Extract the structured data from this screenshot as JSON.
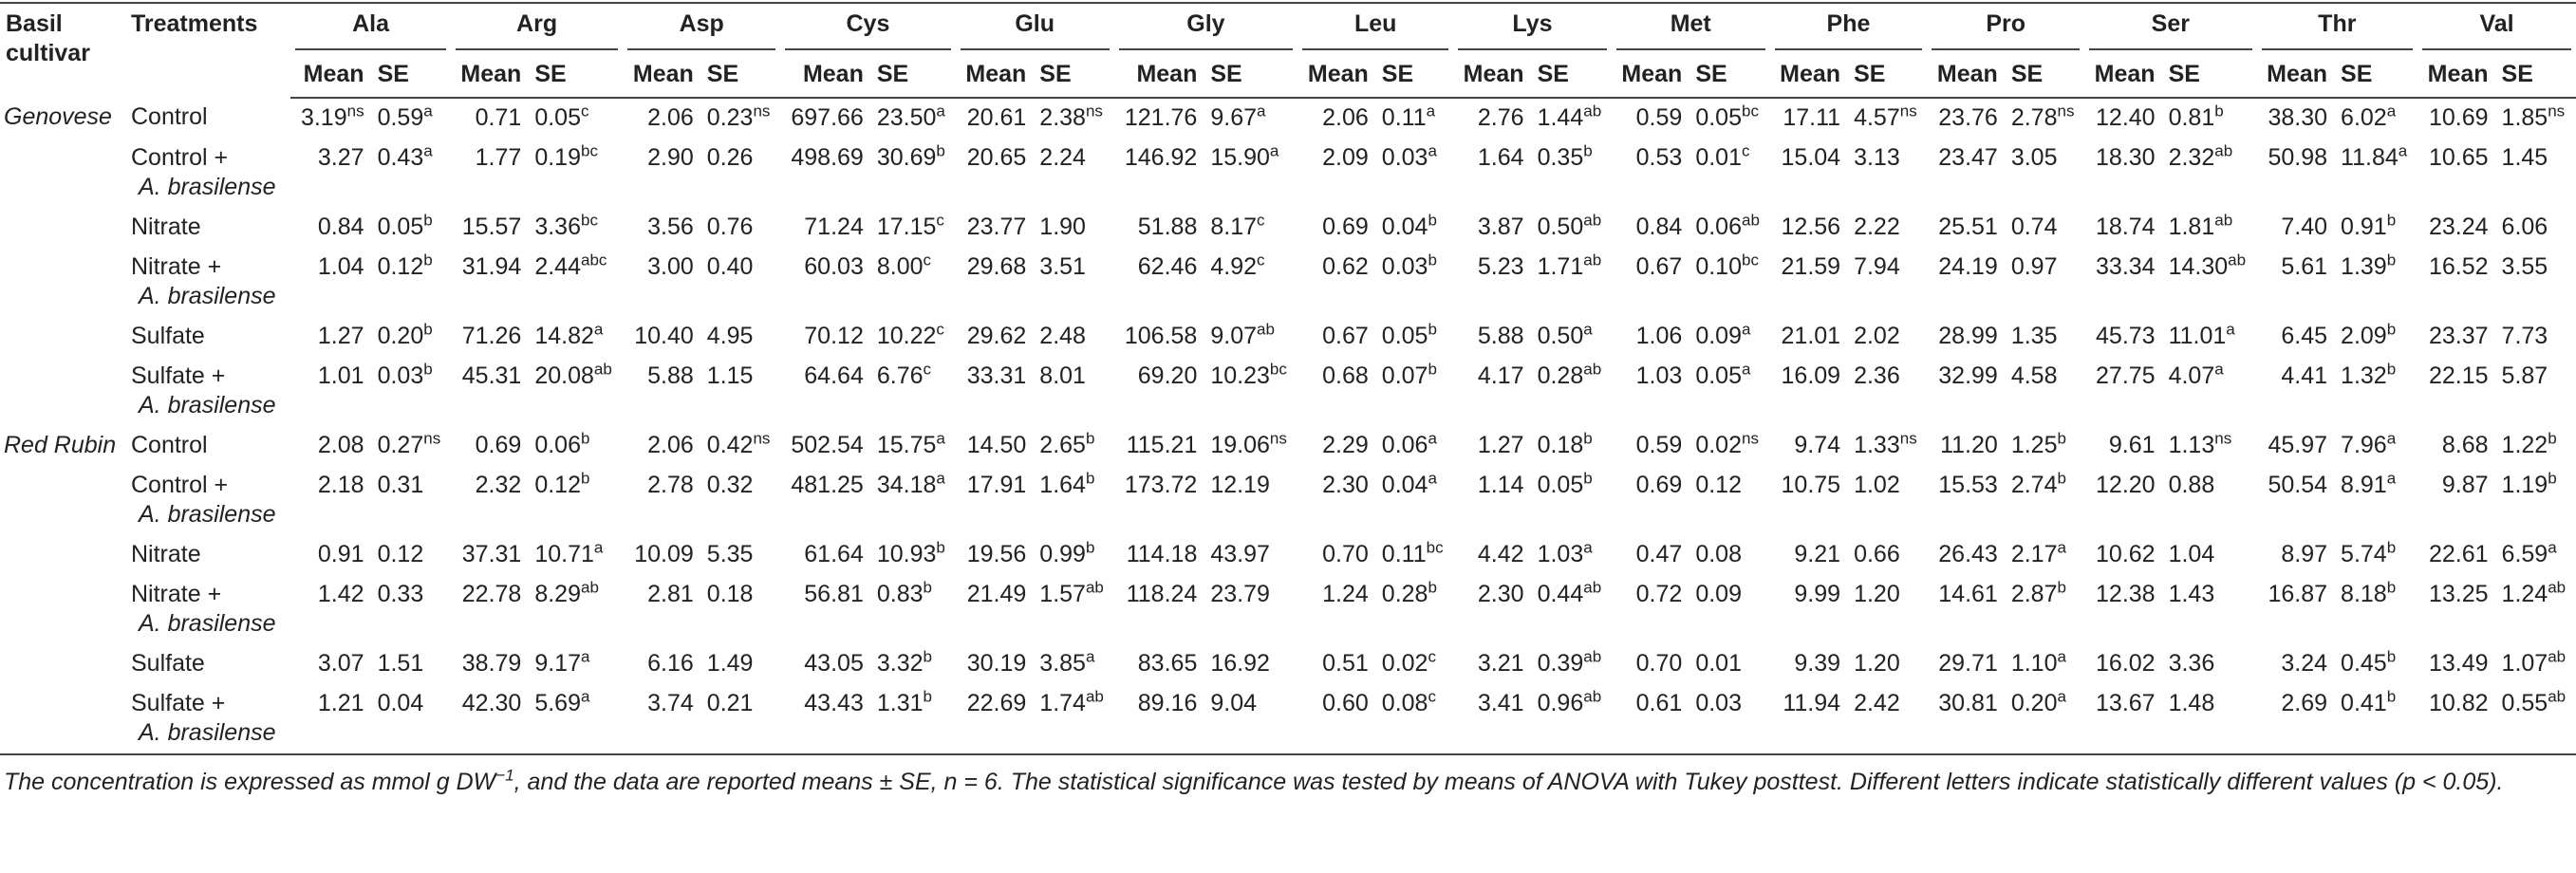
{
  "header": {
    "cultivar": "Basil cultivar",
    "treatments": "Treatments",
    "amino_acids": [
      "Ala",
      "Arg",
      "Asp",
      "Cys",
      "Glu",
      "Gly",
      "Leu",
      "Lys",
      "Met",
      "Phe",
      "Pro",
      "Ser",
      "Thr",
      "Val"
    ],
    "mean": "Mean",
    "se": "SE"
  },
  "groups": [
    {
      "cultivar": "Genovese",
      "rows": [
        {
          "treatment": [
            "Control"
          ],
          "cells": [
            [
              "3.19",
              "ns"
            ],
            [
              "0.59",
              "a"
            ],
            "0.71",
            [
              "0.05",
              "c"
            ],
            "2.06",
            [
              "0.23",
              "ns"
            ],
            "697.66",
            [
              "23.50",
              "a"
            ],
            "20.61",
            [
              "2.38",
              "ns"
            ],
            "121.76",
            [
              "9.67",
              "a"
            ],
            "2.06",
            [
              "0.11",
              "a"
            ],
            "2.76",
            [
              "1.44",
              "ab"
            ],
            "0.59",
            [
              "0.05",
              "bc"
            ],
            "17.11",
            [
              "4.57",
              "ns"
            ],
            "23.76",
            [
              "2.78",
              "ns"
            ],
            "12.40",
            [
              "0.81",
              "b"
            ],
            "38.30",
            [
              "6.02",
              "a"
            ],
            "10.69",
            [
              "1.85",
              "ns"
            ]
          ]
        },
        {
          "treatment": [
            "Control +",
            "A. brasilense"
          ],
          "cells": [
            "3.27",
            [
              "0.43",
              "a"
            ],
            "1.77",
            [
              "0.19",
              "bc"
            ],
            "2.90",
            "0.26",
            "498.69",
            [
              "30.69",
              "b"
            ],
            "20.65",
            "2.24",
            "146.92",
            [
              "15.90",
              "a"
            ],
            "2.09",
            [
              "0.03",
              "a"
            ],
            "1.64",
            [
              "0.35",
              "b"
            ],
            "0.53",
            [
              "0.01",
              "c"
            ],
            "15.04",
            "3.13",
            "23.47",
            "3.05",
            "18.30",
            [
              "2.32",
              "ab"
            ],
            "50.98",
            [
              "11.84",
              "a"
            ],
            "10.65",
            "1.45"
          ]
        },
        {
          "treatment": [
            "Nitrate"
          ],
          "cells": [
            "0.84",
            [
              "0.05",
              "b"
            ],
            "15.57",
            [
              "3.36",
              "bc"
            ],
            "3.56",
            "0.76",
            "71.24",
            [
              "17.15",
              "c"
            ],
            "23.77",
            "1.90",
            "51.88",
            [
              "8.17",
              "c"
            ],
            "0.69",
            [
              "0.04",
              "b"
            ],
            "3.87",
            [
              "0.50",
              "ab"
            ],
            "0.84",
            [
              "0.06",
              "ab"
            ],
            "12.56",
            "2.22",
            "25.51",
            "0.74",
            "18.74",
            [
              "1.81",
              "ab"
            ],
            "7.40",
            [
              "0.91",
              "b"
            ],
            "23.24",
            "6.06"
          ]
        },
        {
          "treatment": [
            "Nitrate +",
            "A. brasilense"
          ],
          "cells": [
            "1.04",
            [
              "0.12",
              "b"
            ],
            "31.94",
            [
              "2.44",
              "abc"
            ],
            "3.00",
            "0.40",
            "60.03",
            [
              "8.00",
              "c"
            ],
            "29.68",
            "3.51",
            "62.46",
            [
              "4.92",
              "c"
            ],
            "0.62",
            [
              "0.03",
              "b"
            ],
            "5.23",
            [
              "1.71",
              "ab"
            ],
            "0.67",
            [
              "0.10",
              "bc"
            ],
            "21.59",
            "7.94",
            "24.19",
            "0.97",
            "33.34",
            [
              "14.30",
              "ab"
            ],
            "5.61",
            [
              "1.39",
              "b"
            ],
            "16.52",
            "3.55"
          ]
        },
        {
          "treatment": [
            "Sulfate"
          ],
          "cells": [
            "1.27",
            [
              "0.20",
              "b"
            ],
            "71.26",
            [
              "14.82",
              "a"
            ],
            "10.40",
            "4.95",
            "70.12",
            [
              "10.22",
              "c"
            ],
            "29.62",
            "2.48",
            "106.58",
            [
              "9.07",
              "ab"
            ],
            "0.67",
            [
              "0.05",
              "b"
            ],
            "5.88",
            [
              "0.50",
              "a"
            ],
            "1.06",
            [
              "0.09",
              "a"
            ],
            "21.01",
            "2.02",
            "28.99",
            "1.35",
            "45.73",
            [
              "11.01",
              "a"
            ],
            "6.45",
            [
              "2.09",
              "b"
            ],
            "23.37",
            "7.73"
          ]
        },
        {
          "treatment": [
            "Sulfate +",
            "A. brasilense"
          ],
          "cells": [
            "1.01",
            [
              "0.03",
              "b"
            ],
            "45.31",
            [
              "20.08",
              "ab"
            ],
            "5.88",
            "1.15",
            "64.64",
            [
              "6.76",
              "c"
            ],
            "33.31",
            "8.01",
            "69.20",
            [
              "10.23",
              "bc"
            ],
            "0.68",
            [
              "0.07",
              "b"
            ],
            "4.17",
            [
              "0.28",
              "ab"
            ],
            "1.03",
            [
              "0.05",
              "a"
            ],
            "16.09",
            "2.36",
            "32.99",
            "4.58",
            "27.75",
            [
              "4.07",
              "a"
            ],
            "4.41",
            [
              "1.32",
              "b"
            ],
            "22.15",
            "5.87"
          ]
        }
      ]
    },
    {
      "cultivar": "Red Rubin",
      "rows": [
        {
          "treatment": [
            "Control"
          ],
          "cells": [
            "2.08",
            [
              "0.27",
              "ns"
            ],
            "0.69",
            [
              "0.06",
              "b"
            ],
            "2.06",
            [
              "0.42",
              "ns"
            ],
            "502.54",
            [
              "15.75",
              "a"
            ],
            "14.50",
            [
              "2.65",
              "b"
            ],
            "115.21",
            [
              "19.06",
              "ns"
            ],
            "2.29",
            [
              "0.06",
              "a"
            ],
            "1.27",
            [
              "0.18",
              "b"
            ],
            "0.59",
            [
              "0.02",
              "ns"
            ],
            "9.74",
            [
              "1.33",
              "ns"
            ],
            "11.20",
            [
              "1.25",
              "b"
            ],
            "9.61",
            [
              "1.13",
              "ns"
            ],
            "45.97",
            [
              "7.96",
              "a"
            ],
            "8.68",
            [
              "1.22",
              "b"
            ]
          ]
        },
        {
          "treatment": [
            "Control +",
            "A. brasilense"
          ],
          "cells": [
            "2.18",
            "0.31",
            "2.32",
            [
              "0.12",
              "b"
            ],
            "2.78",
            "0.32",
            "481.25",
            [
              "34.18",
              "a"
            ],
            "17.91",
            [
              "1.64",
              "b"
            ],
            "173.72",
            "12.19",
            "2.30",
            [
              "0.04",
              "a"
            ],
            "1.14",
            [
              "0.05",
              "b"
            ],
            "0.69",
            "0.12",
            "10.75",
            "1.02",
            "15.53",
            [
              "2.74",
              "b"
            ],
            "12.20",
            "0.88",
            "50.54",
            [
              "8.91",
              "a"
            ],
            "9.87",
            [
              "1.19",
              "b"
            ]
          ]
        },
        {
          "treatment": [
            "Nitrate"
          ],
          "cells": [
            "0.91",
            "0.12",
            "37.31",
            [
              "10.71",
              "a"
            ],
            "10.09",
            "5.35",
            "61.64",
            [
              "10.93",
              "b"
            ],
            "19.56",
            [
              "0.99",
              "b"
            ],
            "114.18",
            "43.97",
            "0.70",
            [
              "0.11",
              "bc"
            ],
            "4.42",
            [
              "1.03",
              "a"
            ],
            "0.47",
            "0.08",
            "9.21",
            "0.66",
            "26.43",
            [
              "2.17",
              "a"
            ],
            "10.62",
            "1.04",
            "8.97",
            [
              "5.74",
              "b"
            ],
            "22.61",
            [
              "6.59",
              "a"
            ]
          ]
        },
        {
          "treatment": [
            "Nitrate +",
            "A. brasilense"
          ],
          "cells": [
            "1.42",
            "0.33",
            "22.78",
            [
              "8.29",
              "ab"
            ],
            "2.81",
            "0.18",
            "56.81",
            [
              "0.83",
              "b"
            ],
            "21.49",
            [
              "1.57",
              "ab"
            ],
            "118.24",
            "23.79",
            "1.24",
            [
              "0.28",
              "b"
            ],
            "2.30",
            [
              "0.44",
              "ab"
            ],
            "0.72",
            "0.09",
            "9.99",
            "1.20",
            "14.61",
            [
              "2.87",
              "b"
            ],
            "12.38",
            "1.43",
            "16.87",
            [
              "8.18",
              "b"
            ],
            "13.25",
            [
              "1.24",
              "ab"
            ]
          ]
        },
        {
          "treatment": [
            "Sulfate"
          ],
          "cells": [
            "3.07",
            "1.51",
            "38.79",
            [
              "9.17",
              "a"
            ],
            "6.16",
            "1.49",
            "43.05",
            [
              "3.32",
              "b"
            ],
            "30.19",
            [
              "3.85",
              "a"
            ],
            "83.65",
            "16.92",
            "0.51",
            [
              "0.02",
              "c"
            ],
            "3.21",
            [
              "0.39",
              "ab"
            ],
            "0.70",
            "0.01",
            "9.39",
            "1.20",
            "29.71",
            [
              "1.10",
              "a"
            ],
            "16.02",
            "3.36",
            "3.24",
            [
              "0.45",
              "b"
            ],
            "13.49",
            [
              "1.07",
              "ab"
            ]
          ]
        },
        {
          "treatment": [
            "Sulfate +",
            "A. brasilense"
          ],
          "cells": [
            "1.21",
            "0.04",
            "42.30",
            [
              "5.69",
              "a"
            ],
            "3.74",
            "0.21",
            "43.43",
            [
              "1.31",
              "b"
            ],
            "22.69",
            [
              "1.74",
              "ab"
            ],
            "89.16",
            "9.04",
            "0.60",
            [
              "0.08",
              "c"
            ],
            "3.41",
            [
              "0.96",
              "ab"
            ],
            "0.61",
            "0.03",
            "11.94",
            "2.42",
            "30.81",
            [
              "0.20",
              "a"
            ],
            "13.67",
            "1.48",
            "2.69",
            [
              "0.41",
              "b"
            ],
            "10.82",
            [
              "0.55",
              "ab"
            ]
          ]
        }
      ]
    }
  ],
  "footnote": {
    "text_1": "The concentration is expressed as mmol g DW",
    "sup": "−1",
    "text_2": ", and the data are reported means ± SE, n = 6. The statistical significance was tested by means of ANOVA with Tukey posttest. Different letters indicate statistically different values (p < 0.05)."
  }
}
